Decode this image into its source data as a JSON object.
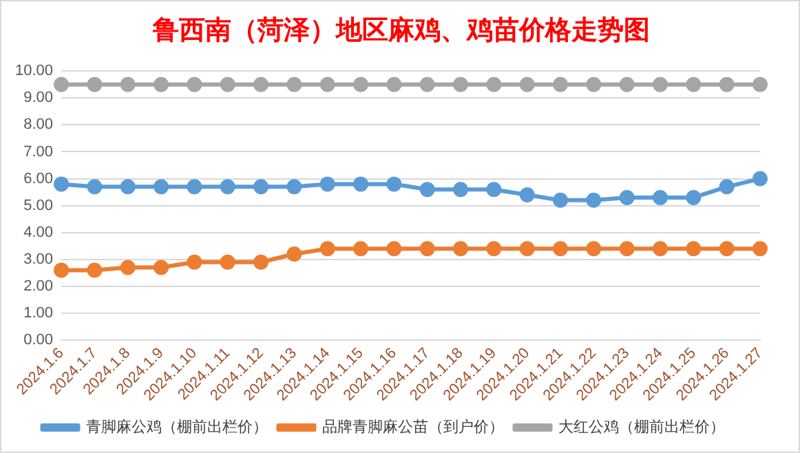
{
  "chart_data": {
    "type": "line",
    "title": "鲁西南（菏泽）地区麻鸡、鸡苗价格走势图",
    "categories": [
      "2024.1.6",
      "2024.1.7",
      "2024.1.8",
      "2024.1.9",
      "2024.1.10",
      "2024.1.11",
      "2024.1.12",
      "2024.1.13",
      "2024.1.14",
      "2024.1.15",
      "2024.1.16",
      "2024.1.17",
      "2024.1.18",
      "2024.1.19",
      "2024.1.20",
      "2024.1.21",
      "2024.1.22",
      "2024.1.23",
      "2024.1.24",
      "2024.1.25",
      "2024.1.26",
      "2024.1.27"
    ],
    "series": [
      {
        "name": "青脚麻公鸡（棚前出栏价）",
        "color": "#5b9bd5",
        "values": [
          5.8,
          5.7,
          5.7,
          5.7,
          5.7,
          5.7,
          5.7,
          5.7,
          5.8,
          5.8,
          5.8,
          5.6,
          5.6,
          5.6,
          5.4,
          5.2,
          5.2,
          5.3,
          5.3,
          5.3,
          5.7,
          6.0
        ]
      },
      {
        "name": "品牌青脚麻公苗（到户价）",
        "color": "#ed7d31",
        "values": [
          2.6,
          2.6,
          2.7,
          2.7,
          2.9,
          2.9,
          2.9,
          3.2,
          3.4,
          3.4,
          3.4,
          3.4,
          3.4,
          3.4,
          3.4,
          3.4,
          3.4,
          3.4,
          3.4,
          3.4,
          3.4,
          3.4
        ]
      },
      {
        "name": "大红公鸡（棚前出栏价）",
        "color": "#a5a5a5",
        "values": [
          9.5,
          9.5,
          9.5,
          9.5,
          9.5,
          9.5,
          9.5,
          9.5,
          9.5,
          9.5,
          9.5,
          9.5,
          9.5,
          9.5,
          9.5,
          9.5,
          9.5,
          9.5,
          9.5,
          9.5,
          9.5,
          9.5
        ]
      }
    ],
    "ylim": [
      0,
      10
    ],
    "yticks": [
      {
        "value": 0,
        "label": "0.00"
      },
      {
        "value": 1,
        "label": "1.00"
      },
      {
        "value": 2,
        "label": "2.00"
      },
      {
        "value": 3,
        "label": "3.00"
      },
      {
        "value": 4,
        "label": "4.00"
      },
      {
        "value": 5,
        "label": "5.00"
      },
      {
        "value": 6,
        "label": "6.00"
      },
      {
        "value": 7,
        "label": "7.00"
      },
      {
        "value": 8,
        "label": "8.00"
      },
      {
        "value": 9,
        "label": "9.00"
      },
      {
        "value": 10,
        "label": "10.00"
      }
    ],
    "grid": "y",
    "legend": "bottom",
    "marker": "circle",
    "line_style": "solid"
  }
}
